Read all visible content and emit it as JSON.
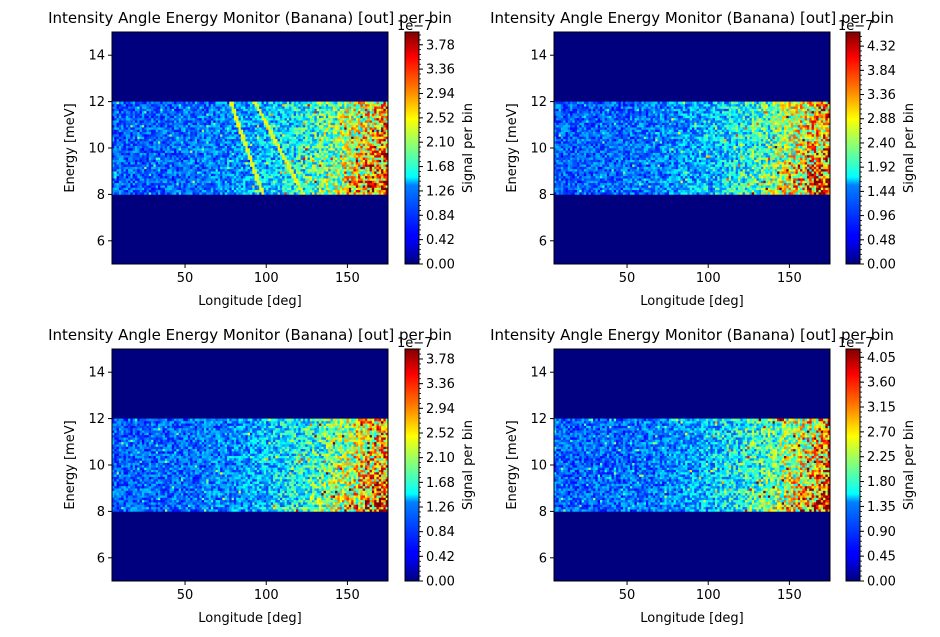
{
  "chart_data": [
    {
      "type": "heatmap",
      "title": "Intensity Angle Energy Monitor (Banana) [out] per bin",
      "xlabel": "Longitude [deg]",
      "ylabel": "Energy [meV]",
      "xlim": [
        5,
        175
      ],
      "ylim": [
        5,
        15
      ],
      "xticks": [
        50,
        100,
        150
      ],
      "yticks": [
        6,
        8,
        10,
        12,
        14
      ],
      "band": [
        8,
        12
      ],
      "colormap": "jet",
      "colorbar": {
        "label": "Signal per bin",
        "exponent": "1e−7",
        "max": 4.0,
        "ticks": [
          "0.00",
          "0.42",
          "0.84",
          "1.26",
          "1.68",
          "2.10",
          "2.52",
          "2.94",
          "3.36",
          "3.78"
        ]
      },
      "features": {
        "curves": [
          {
            "x": [
              78,
              98
            ],
            "y": [
              12,
              8
            ]
          },
          {
            "x": [
              93,
              123
            ],
            "y": [
              12,
              8
            ]
          }
        ],
        "gradient": "intensity increases with longitude, peak near 165 deg at 8-9 meV"
      }
    },
    {
      "type": "heatmap",
      "title": "Intensity Angle Energy Monitor (Banana) [out] per bin",
      "xlabel": "Longitude [deg]",
      "ylabel": "Energy [meV]",
      "xlim": [
        5,
        175
      ],
      "ylim": [
        5,
        15
      ],
      "xticks": [
        50,
        100,
        150
      ],
      "yticks": [
        6,
        8,
        10,
        12,
        14
      ],
      "band": [
        8,
        12
      ],
      "colormap": "jet",
      "colorbar": {
        "label": "Signal per bin",
        "exponent": "1e−7",
        "max": 4.6,
        "ticks": [
          "0.00",
          "0.48",
          "0.96",
          "1.44",
          "1.92",
          "2.40",
          "2.88",
          "3.36",
          "3.84",
          "4.32"
        ]
      },
      "features": {
        "curves": [],
        "gradient": "intensity increases with longitude, peak near 165 deg at 8-9 meV"
      }
    },
    {
      "type": "heatmap",
      "title": "Intensity Angle Energy Monitor (Banana) [out] per bin",
      "xlabel": "Longitude [deg]",
      "ylabel": "Energy [meV]",
      "xlim": [
        5,
        175
      ],
      "ylim": [
        5,
        15
      ],
      "xticks": [
        50,
        100,
        150
      ],
      "yticks": [
        6,
        8,
        10,
        12,
        14
      ],
      "band": [
        8,
        12
      ],
      "colormap": "jet",
      "colorbar": {
        "label": "Signal per bin",
        "exponent": "1e−7",
        "max": 3.95,
        "ticks": [
          "0.00",
          "0.42",
          "0.84",
          "1.26",
          "1.68",
          "2.10",
          "2.52",
          "2.94",
          "3.36",
          "3.78"
        ]
      },
      "features": {
        "curves": [],
        "gradient": "intensity increases with longitude, peak near 165 deg at 8-9 meV"
      }
    },
    {
      "type": "heatmap",
      "title": "Intensity Angle Energy Monitor (Banana) [out] per bin",
      "xlabel": "Longitude [deg]",
      "ylabel": "Energy [meV]",
      "xlim": [
        5,
        175
      ],
      "ylim": [
        5,
        15
      ],
      "xticks": [
        50,
        100,
        150
      ],
      "yticks": [
        6,
        8,
        10,
        12,
        14
      ],
      "band": [
        8,
        12
      ],
      "colormap": "jet",
      "colorbar": {
        "label": "Signal per bin",
        "exponent": "1e−7",
        "max": 4.2,
        "ticks": [
          "0.00",
          "0.45",
          "0.90",
          "1.35",
          "1.80",
          "2.25",
          "2.70",
          "3.15",
          "3.60",
          "4.05"
        ]
      },
      "features": {
        "curves": [],
        "gradient": "intensity increases with longitude, peak near 165 deg at 8-9 meV"
      }
    }
  ]
}
